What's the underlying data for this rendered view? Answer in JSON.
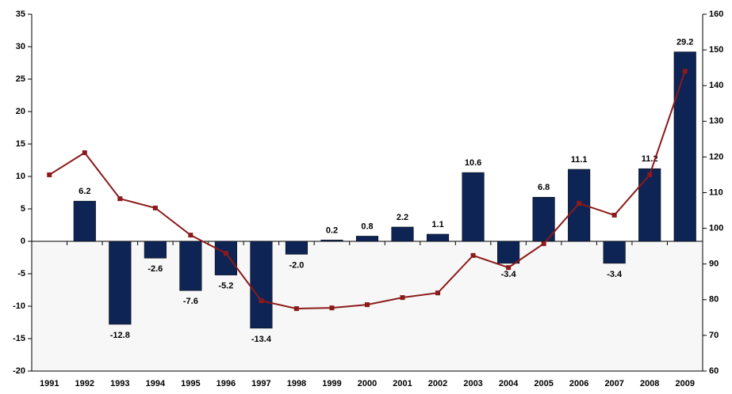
{
  "chart_data": {
    "type": "combo",
    "categories": [
      "1991",
      "1992",
      "1993",
      "1994",
      "1995",
      "1996",
      "1997",
      "1998",
      "1999",
      "2000",
      "2001",
      "2002",
      "2003",
      "2004",
      "2005",
      "2006",
      "2007",
      "2008",
      "2009"
    ],
    "series": [
      {
        "type": "bar",
        "color": "#0d2455",
        "values": [
          null,
          6.2,
          -12.8,
          -2.6,
          -7.6,
          -5.2,
          -13.4,
          -2.0,
          0.2,
          0.8,
          2.2,
          1.1,
          10.6,
          -3.4,
          6.8,
          11.1,
          -3.4,
          11.2,
          29.2
        ],
        "value_labels": [
          null,
          "6.2",
          "-12.8",
          "-2.6",
          "-7.6",
          "-5.2",
          "-13.4",
          "-2.0",
          "0.2",
          "0.8",
          "2.2",
          "1.1",
          "10.6",
          "-3.4",
          "6.8",
          "11.1",
          "-3.4",
          "11.2",
          "29.2"
        ]
      },
      {
        "type": "line",
        "axis": "y2",
        "color": "#8b1a1a",
        "values": [
          115.0,
          121.2,
          108.3,
          105.7,
          98.1,
          93.0,
          79.7,
          77.5,
          77.7,
          78.6,
          80.6,
          81.9,
          92.4,
          89.0,
          95.7,
          107.0,
          103.7,
          115.0,
          144.0
        ]
      }
    ],
    "ylim": [
      -20,
      35
    ],
    "yticks": [
      -20,
      -15,
      -10,
      -5,
      0,
      5,
      10,
      15,
      20,
      25,
      30,
      35
    ],
    "y2lim": [
      60,
      160
    ],
    "y2ticks": [
      60,
      70,
      80,
      90,
      100,
      110,
      120,
      130,
      140,
      150,
      160
    ]
  }
}
